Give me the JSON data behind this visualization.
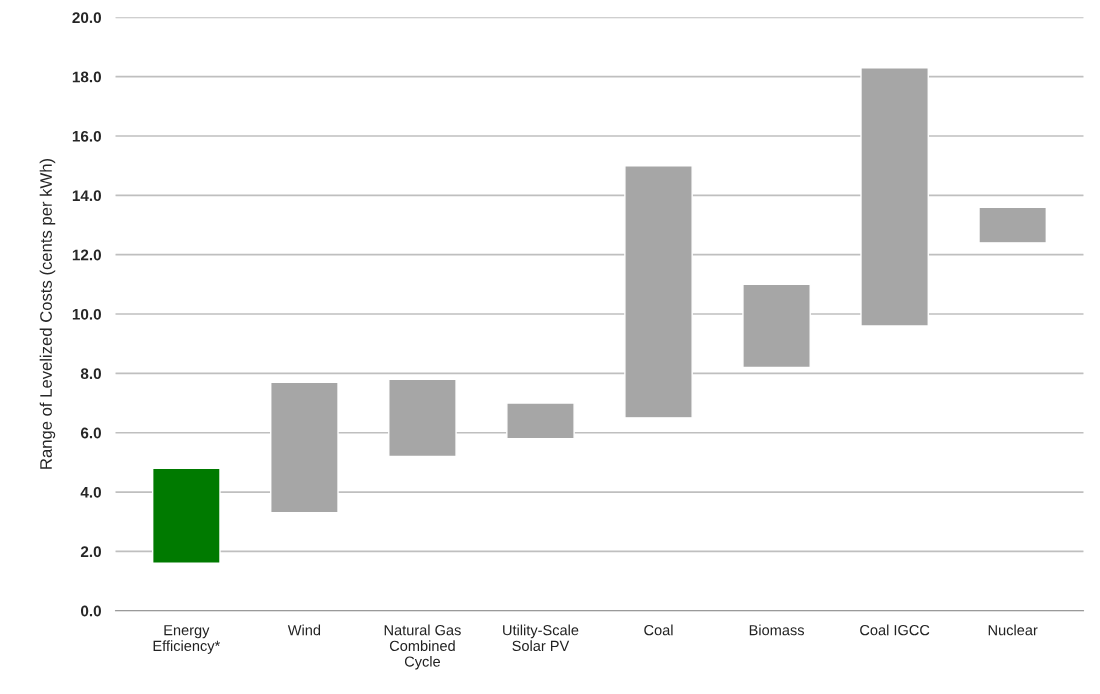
{
  "chart_data": {
    "type": "bar",
    "ylabel": "Range of Levelized Costs (cents per kWh)",
    "categories": [
      "Energy\nEfficiency*",
      "Wind",
      "Natural Gas\nCombined\nCycle",
      "Utility-Scale\nSolar PV",
      "Coal",
      "Biomass",
      "Coal IGCC",
      "Nuclear"
    ],
    "base": [
      1.6,
      3.3,
      5.2,
      5.8,
      6.5,
      8.2,
      9.6,
      12.4
    ],
    "values": [
      3.2,
      4.4,
      2.6,
      1.2,
      8.5,
      2.8,
      8.7,
      1.2
    ],
    "colors": [
      "#007a00",
      "#a6a6a6",
      "#a6a6a6",
      "#a6a6a6",
      "#a6a6a6",
      "#a6a6a6",
      "#a6a6a6",
      "#a6a6a6"
    ],
    "ylim": [
      0,
      20
    ],
    "yticks": [
      {
        "value": 0,
        "label": "0.0"
      },
      {
        "value": 2,
        "label": "2.0"
      },
      {
        "value": 4,
        "label": "4.0"
      },
      {
        "value": 6,
        "label": "6.0"
      },
      {
        "value": 8,
        "label": "8.0"
      },
      {
        "value": 10,
        "label": "10.0"
      },
      {
        "value": 12,
        "label": "12.0"
      },
      {
        "value": 14,
        "label": "14.0"
      },
      {
        "value": 16,
        "label": "16.0"
      },
      {
        "value": 18,
        "label": "18.0"
      },
      {
        "value": 20,
        "label": "20.0"
      }
    ],
    "grid": "y"
  }
}
